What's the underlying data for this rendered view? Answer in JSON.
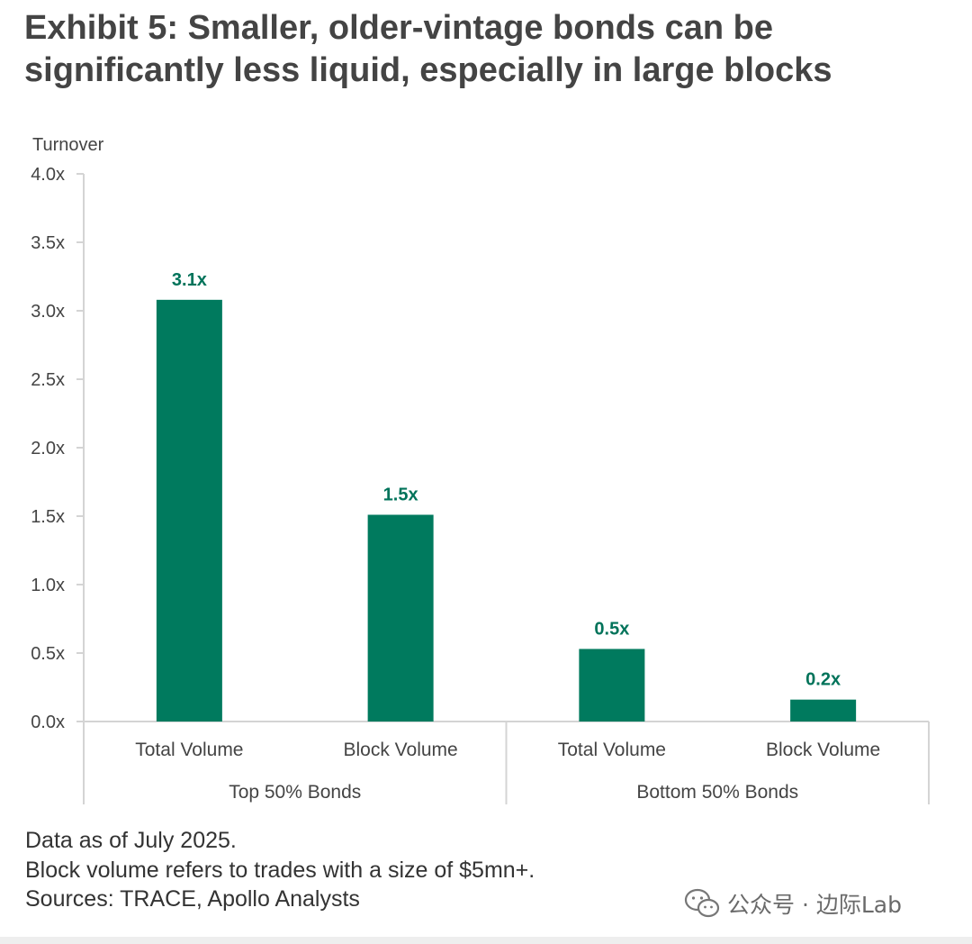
{
  "title_lines": [
    "Exhibit 5: Smaller, older-vintage bonds can be",
    "significantly less liquid, especially in large blocks"
  ],
  "chart_data": {
    "type": "bar",
    "ylabel": "Turnover",
    "ylim": [
      0,
      4.0
    ],
    "yticks": [
      "0.0x",
      "0.5x",
      "1.0x",
      "1.5x",
      "2.0x",
      "2.5x",
      "3.0x",
      "3.5x",
      "4.0x"
    ],
    "groups": [
      {
        "name": "Top 50% Bonds",
        "categories": [
          "Total Volume",
          "Block Volume"
        ],
        "values": [
          3.08,
          1.51
        ],
        "labels": [
          "3.1x",
          "1.5x"
        ]
      },
      {
        "name": "Bottom 50% Bonds",
        "categories": [
          "Total Volume",
          "Block Volume"
        ],
        "values": [
          0.53,
          0.16
        ],
        "labels": [
          "0.5x",
          "0.2x"
        ]
      }
    ],
    "bar_color": "#007A5E",
    "label_color": "#00735A",
    "grid": false,
    "legend": "none"
  },
  "notes": [
    "Data as of July 2025.",
    "Block volume refers to trades with a size of $5mn+.",
    "Sources: TRACE, Apollo Analysts"
  ],
  "watermark": {
    "text": "公众号 · 边际Lab",
    "icon": "wechat-icon"
  }
}
